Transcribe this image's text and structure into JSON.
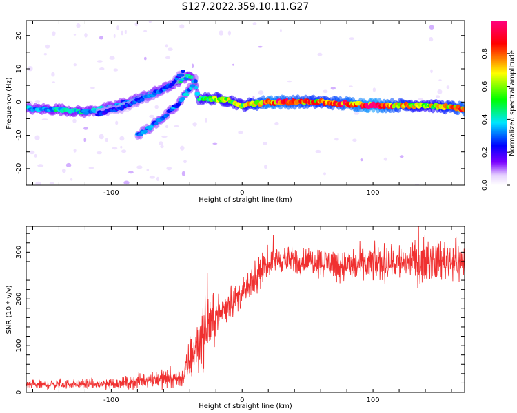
{
  "figure": {
    "title": "S127.2022.359.10.11.G27"
  },
  "chart_data": [
    {
      "type": "heatmap",
      "xlabel": "Height of straight line (km)",
      "ylabel": "Frequency (Hz)",
      "xlim": [
        -165,
        170
      ],
      "ylim": [
        -25,
        24.5
      ],
      "xticks": [
        -100,
        0,
        100
      ],
      "xtick_labels": [
        "-100",
        "0",
        "100"
      ],
      "yticks": [
        -20,
        -10,
        0,
        10,
        20
      ],
      "ytick_labels": [
        "-20",
        "-10",
        "0",
        "10",
        "20"
      ],
      "grid": false,
      "colorbar": {
        "label": "Normalized spectral amplitude",
        "range": [
          0,
          1
        ],
        "ticks": [
          0.0,
          0.2,
          0.4,
          0.6,
          0.8
        ],
        "tick_labels": [
          "0.0",
          "0.2",
          "0.4",
          "0.6",
          "0.8"
        ],
        "colormap": [
          "#ffffff",
          "#e6d2ff",
          "#7a00ff",
          "#0000ff",
          "#00e6ff",
          "#00ff00",
          "#ffff00",
          "#ff0000",
          "#ff0080"
        ]
      },
      "ridges": [
        {
          "x": [
            -165,
            -140,
            -120,
            -100,
            -80,
            -60,
            -45,
            -38,
            -33,
            -20,
            -10,
            0,
            20,
            60,
            100,
            140,
            170
          ],
          "y": [
            -2,
            -2.2,
            -3,
            -1.5,
            1,
            4,
            7,
            8,
            1,
            1,
            0.5,
            -1,
            0,
            0,
            -1,
            -1,
            -2
          ],
          "amplitude": [
            0.35,
            0.4,
            0.38,
            0.36,
            0.35,
            0.38,
            0.4,
            0.4,
            0.55,
            0.6,
            0.6,
            0.58,
            0.9,
            0.75,
            0.95,
            0.6,
            0.85
          ]
        },
        {
          "x": [
            -80,
            -70,
            -60,
            -50,
            -40,
            -35
          ],
          "y": [
            -10,
            -7.5,
            -4.5,
            -1,
            4,
            7
          ],
          "amplitude": [
            0.3,
            0.32,
            0.33,
            0.33,
            0.34,
            0.3
          ]
        },
        {
          "x": [
            -110,
            -90,
            -70,
            -55,
            -45
          ],
          "y": [
            -3.5,
            -1.5,
            2,
            5,
            9
          ],
          "amplitude": [
            0.25,
            0.25,
            0.3,
            0.3,
            0.25
          ]
        }
      ]
    },
    {
      "type": "line",
      "xlabel": "Height of straight line (km)",
      "ylabel": "SNR (10 * v/v)",
      "xlim": [
        -165,
        170
      ],
      "ylim": [
        0,
        355
      ],
      "xticks": [
        -100,
        0,
        100
      ],
      "xtick_labels": [
        "-100",
        "0",
        "100"
      ],
      "yticks": [
        0,
        100,
        200,
        300
      ],
      "ytick_labels": [
        "0",
        "100",
        "200",
        "300"
      ],
      "grid": false,
      "line_color": "#f03030",
      "series": [
        {
          "x": [
            -165,
            -150,
            -130,
            -110,
            -90,
            -70,
            -55,
            -45,
            -40,
            -35,
            -30,
            -25,
            -20,
            -10,
            0,
            10,
            15,
            20,
            25,
            40,
            60,
            80,
            100,
            120,
            140,
            160,
            170
          ],
          "y": [
            15,
            16,
            18,
            17,
            20,
            28,
            30,
            32,
            70,
            100,
            120,
            150,
            160,
            190,
            210,
            240,
            255,
            275,
            285,
            282,
            280,
            270,
            275,
            280,
            280,
            285,
            275
          ],
          "noise": [
            6,
            7,
            7,
            8,
            9,
            12,
            14,
            15,
            35,
            45,
            50,
            40,
            30,
            22,
            20,
            20,
            20,
            18,
            18,
            20,
            22,
            25,
            27,
            28,
            30,
            30,
            28
          ]
        }
      ]
    }
  ]
}
